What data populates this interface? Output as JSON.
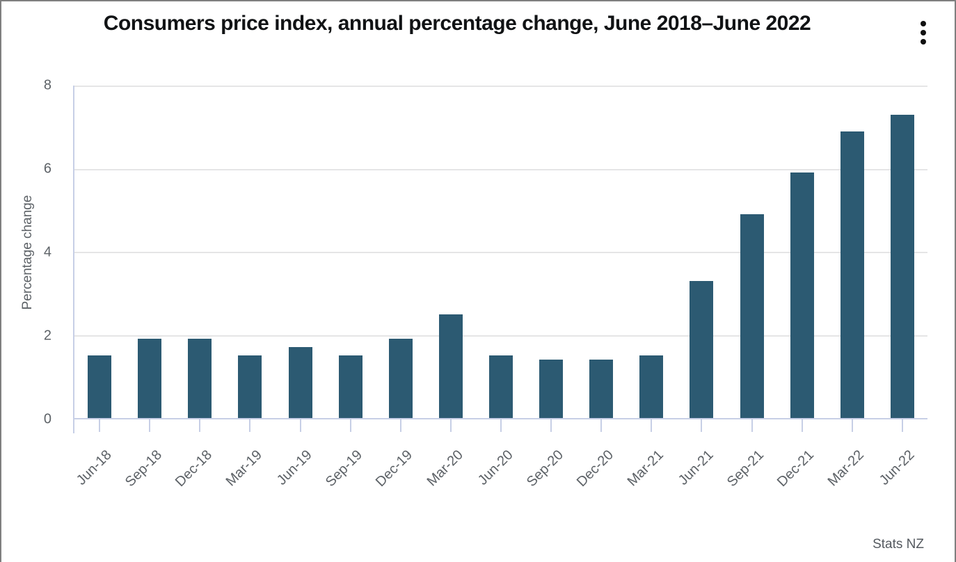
{
  "header": {
    "title": "Consumers price index, annual percentage change, June 2018–June 2022"
  },
  "footer": {
    "attribution": "Stats NZ"
  },
  "icons": {
    "menu": "kebab-menu-icon"
  },
  "colors": {
    "bar": "#2c5a72",
    "axis_line": "#c7cfe6",
    "gridline": "#e5e5e6",
    "tick_text": "#5d6267",
    "title_text": "#111315",
    "window_border": "#7f7f7f"
  },
  "chart_data": {
    "type": "bar",
    "title": "Consumers price index, annual percentage change, June 2018–June 2022",
    "xlabel": "",
    "ylabel": "Percentage change",
    "ylim": [
      0,
      8
    ],
    "yticks": [
      0,
      2,
      4,
      6,
      8
    ],
    "grid": "horizontal",
    "legend": "none",
    "source": "Stats NZ",
    "categories": [
      "Jun-18",
      "Sep-18",
      "Dec-18",
      "Mar-19",
      "Jun-19",
      "Sep-19",
      "Dec-19",
      "Mar-20",
      "Jun-20",
      "Sep-20",
      "Dec-20",
      "Mar-21",
      "Jun-21",
      "Sep-21",
      "Dec-21",
      "Mar-22",
      "Jun-22"
    ],
    "values": [
      1.5,
      1.9,
      1.9,
      1.5,
      1.7,
      1.5,
      1.9,
      2.5,
      1.5,
      1.4,
      1.4,
      1.5,
      3.3,
      4.9,
      5.9,
      6.9,
      7.3
    ]
  }
}
